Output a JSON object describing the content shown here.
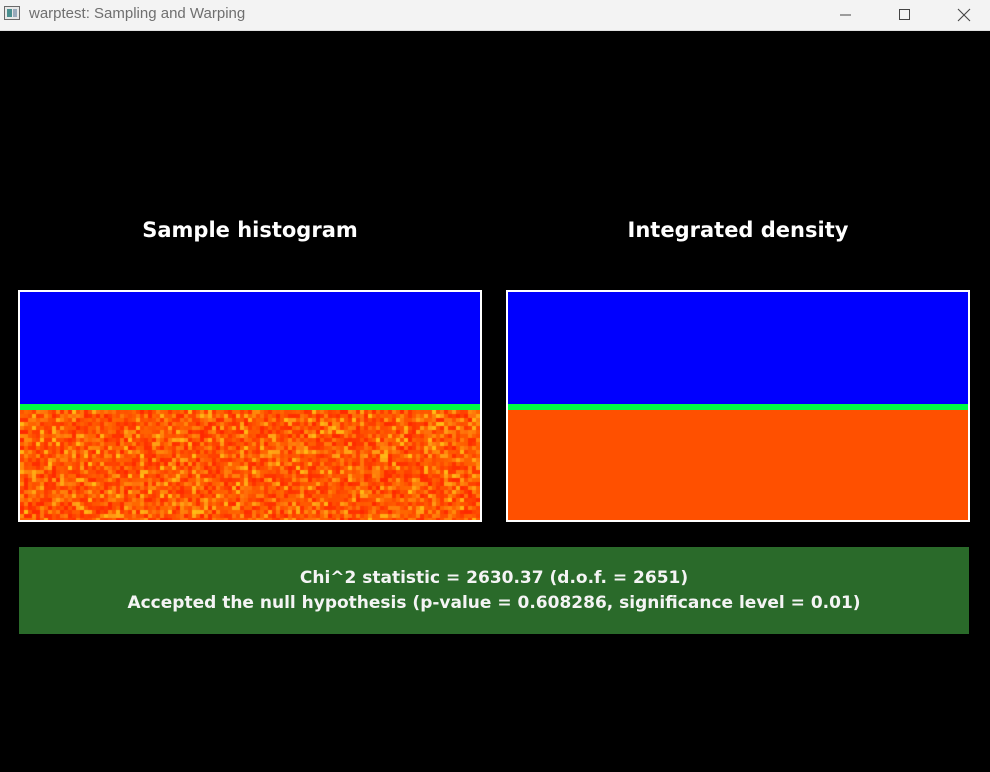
{
  "window": {
    "title": "warptest: Sampling and Warping",
    "icon": "app-window-icon",
    "controls": {
      "minimize": "minimize-icon",
      "maximize": "maximize-icon",
      "close": "close-icon"
    }
  },
  "panels": {
    "left": {
      "title": "Sample histogram",
      "visualization": "noisy-heatmap"
    },
    "right": {
      "title": "Integrated density",
      "visualization": "smooth-heatmap"
    }
  },
  "colors": {
    "background": "#000000",
    "density_low": "#0000ff",
    "density_edge": "#00ff44",
    "density_high": "#ff5000",
    "result_bg": "#2a6a2a",
    "frame": "#ffffff"
  },
  "result": {
    "line1": "Chi^2 statistic = 2630.37 (d.o.f. = 2651)",
    "line2": "Accepted the null hypothesis (p-value = 0.608286, significance level = 0.01)"
  }
}
